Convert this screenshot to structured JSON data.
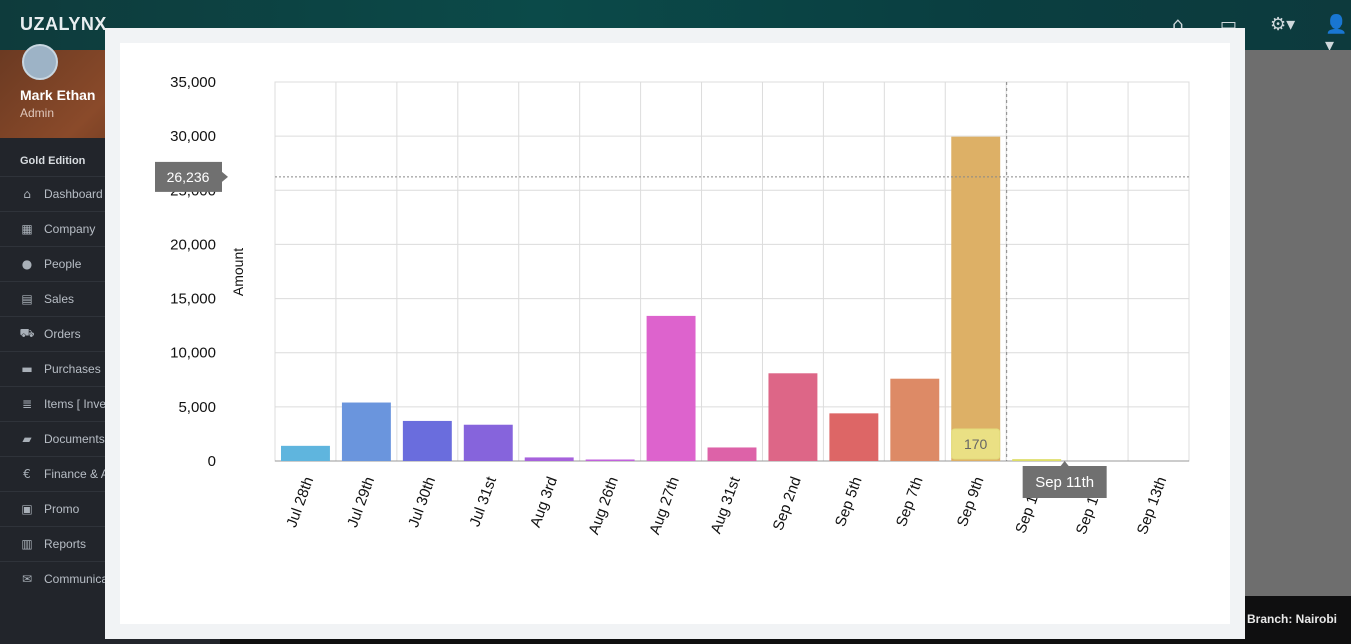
{
  "app": {
    "brand": "UZALYNX"
  },
  "header_icons": [
    "home-icon",
    "chat-icon",
    "gear-icon",
    "user-icon"
  ],
  "profile": {
    "name": "Mark Ethan",
    "role": "Admin"
  },
  "edition": "Gold Edition",
  "menu": [
    {
      "label": "Dashboard",
      "icon": "home-icon"
    },
    {
      "label": "Company",
      "icon": "bank-icon"
    },
    {
      "label": "People",
      "icon": "users-icon"
    },
    {
      "label": "Sales",
      "icon": "receipt-icon"
    },
    {
      "label": "Orders",
      "icon": "cart-icon"
    },
    {
      "label": "Purchases",
      "icon": "truck-icon"
    },
    {
      "label": "Items [ Inve",
      "icon": "database-icon"
    },
    {
      "label": "Documents",
      "icon": "folder-icon"
    },
    {
      "label": "Finance & A",
      "icon": "euro-icon"
    },
    {
      "label": "Promo",
      "icon": "gift-icon"
    },
    {
      "label": "Reports",
      "icon": "bar-chart-icon"
    },
    {
      "label": "Communica",
      "icon": "envelope-icon"
    }
  ],
  "footer": {
    "branch": "Branch: Nairobi"
  },
  "chart_data": {
    "type": "bar",
    "ylabel": "Amount",
    "xlabel": "",
    "ylim": [
      0,
      35000
    ],
    "yticks": [
      "0",
      "5,000",
      "10,000",
      "15,000",
      "20,000",
      "25,000",
      "30,000",
      "35,000"
    ],
    "categories": [
      "Jul 28th",
      "Jul 29th",
      "Jul 30th",
      "Jul 31st",
      "Aug 3rd",
      "Aug 26th",
      "Aug 27th",
      "Aug 31st",
      "Sep 2nd",
      "Sep 5th",
      "Sep 7th",
      "Sep 9th",
      "Sep 11th",
      "Sep 12th",
      "Sep 13th"
    ],
    "values": [
      1400,
      5400,
      3700,
      3350,
      330,
      120,
      13400,
      1250,
      8100,
      4400,
      7600,
      29950,
      170,
      0,
      0
    ],
    "colors": [
      "#5fb5de",
      "#6a95dd",
      "#6a6ddd",
      "#8664dc",
      "#a662dc",
      "#c162dc",
      "#dd63cd",
      "#dd62a8",
      "#dd6687",
      "#dd6666",
      "#dd8a66",
      "#ddb066",
      "#dddd66",
      "#ccdd66",
      "#a7dd66"
    ],
    "grid": true,
    "legend": "none",
    "crosshair": {
      "y_label": "26,236",
      "x_label": "Sep 11th"
    },
    "hover_tooltip": "170"
  }
}
